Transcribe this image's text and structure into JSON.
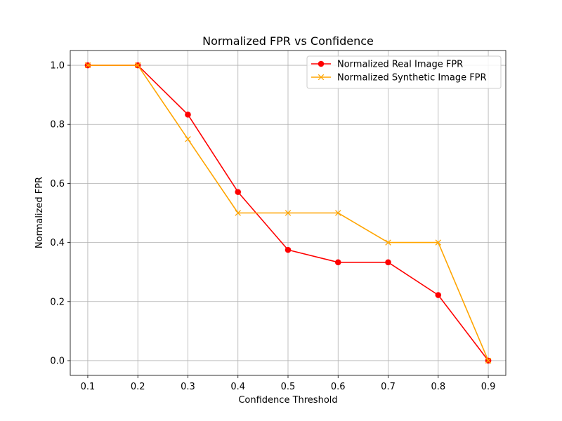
{
  "chart_data": {
    "type": "line",
    "title": "Normalized FPR vs Confidence",
    "xlabel": "Confidence Threshold",
    "ylabel": "Normalized FPR",
    "x": [
      0.1,
      0.2,
      0.3,
      0.4,
      0.5,
      0.6,
      0.7,
      0.8,
      0.9
    ],
    "x_ticks": [
      "0.1",
      "0.2",
      "0.3",
      "0.4",
      "0.5",
      "0.6",
      "0.7",
      "0.8",
      "0.9"
    ],
    "y_ticks": [
      "0.0",
      "0.2",
      "0.4",
      "0.6",
      "0.8",
      "1.0"
    ],
    "xlim": [
      0.065,
      0.935
    ],
    "ylim": [
      -0.05,
      1.05
    ],
    "grid": true,
    "legend_position": "top-right",
    "series": [
      {
        "name": "Normalized Real Image FPR",
        "color": "#ff0000",
        "marker": "circle",
        "values": [
          1.0,
          1.0,
          0.833,
          0.571,
          0.375,
          0.333,
          0.333,
          0.222,
          0.0
        ]
      },
      {
        "name": "Normalized Synthetic Image FPR",
        "color": "#ffa500",
        "marker": "x",
        "values": [
          1.0,
          1.0,
          0.75,
          0.5,
          0.5,
          0.5,
          0.4,
          0.4,
          0.0
        ]
      }
    ]
  }
}
